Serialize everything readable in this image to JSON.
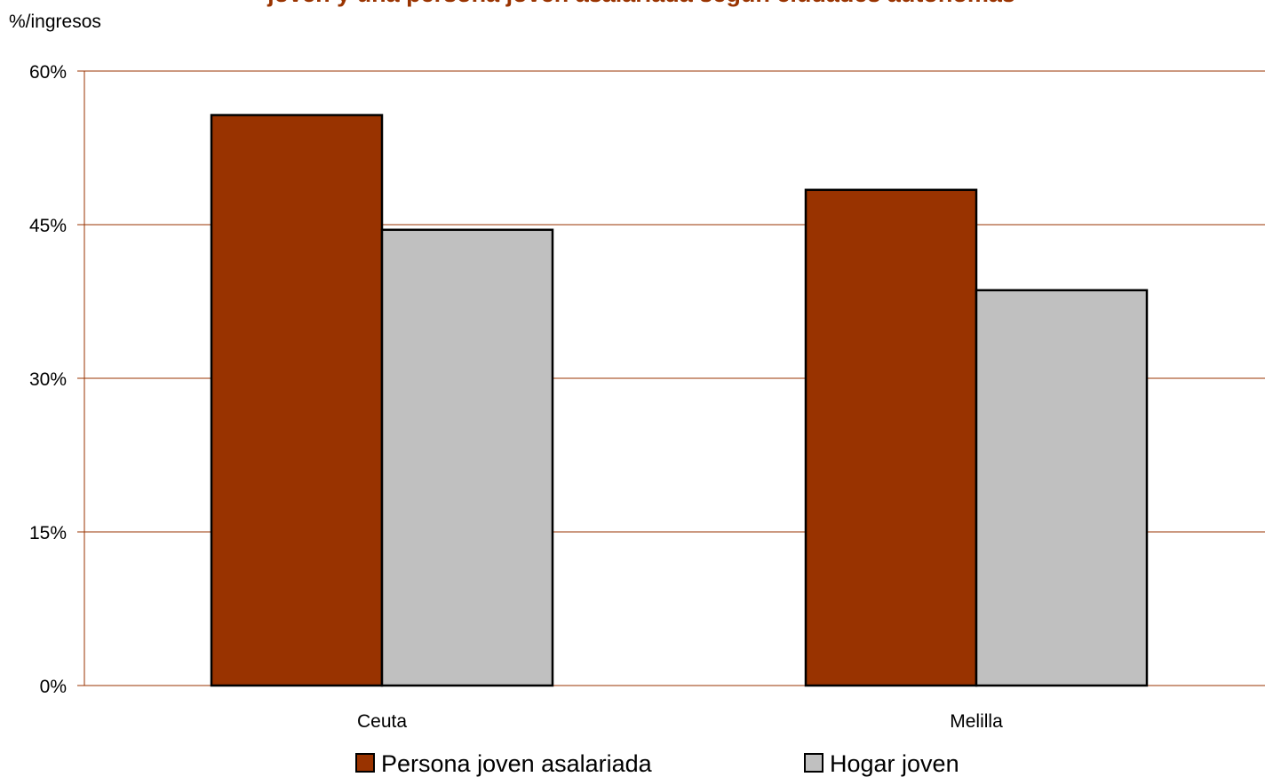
{
  "chart_data": {
    "type": "bar",
    "title": "joven y una persona joven asalariada según ciudades autónomas",
    "ylabel": "%/ingresos",
    "xlabel": "",
    "categories": [
      "Ceuta",
      "Melilla"
    ],
    "series": [
      {
        "name": "Persona joven asalariada",
        "values": [
          55.7,
          48.4
        ],
        "color": "#993300"
      },
      {
        "name": "Hogar joven",
        "values": [
          44.5,
          38.6
        ],
        "color": "#c0c0c0"
      }
    ],
    "ylim": [
      0,
      60
    ],
    "yticks": [
      0,
      15,
      30,
      45,
      60
    ],
    "ytick_labels": [
      "0%",
      "15%",
      "30%",
      "45%",
      "60%"
    ],
    "grid": true,
    "gridline_color": "#993300",
    "title_color": "#993300",
    "legend_position": "bottom"
  }
}
